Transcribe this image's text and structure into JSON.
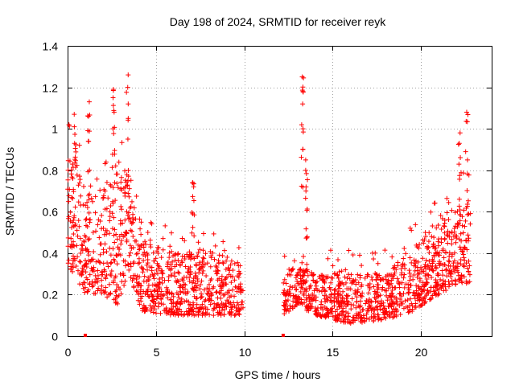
{
  "chart_data": {
    "type": "scatter",
    "title": "Day 198 of 2024, SRMTID for receiver reyk",
    "xlabel": "GPS time / hours",
    "ylabel": "SRMTID / TECUs",
    "xlim": [
      0,
      24
    ],
    "ylim": [
      0,
      1.4
    ],
    "xticks": [
      0,
      5,
      10,
      15,
      20
    ],
    "xtick_labels": [
      "0",
      "5",
      "10",
      "15",
      "20"
    ],
    "yticks": [
      0,
      0.2,
      0.4,
      0.6,
      0.8,
      1,
      1.2,
      1.4
    ],
    "ytick_labels": [
      "0",
      "0.2",
      "0.4",
      "0.6",
      "0.8",
      "1",
      "1.2",
      "1.4"
    ],
    "grid": true,
    "marker": "+",
    "series": [
      {
        "name": "SRMTID",
        "color": "#ff0000",
        "density_profile": [
          {
            "t": 0.0,
            "lo": 0.35,
            "hi": 0.92
          },
          {
            "t": 1.0,
            "lo": 0.2,
            "hi": 0.75
          },
          {
            "t": 2.0,
            "lo": 0.2,
            "hi": 0.7
          },
          {
            "t": 2.8,
            "lo": 0.15,
            "hi": 0.85
          },
          {
            "t": 3.5,
            "lo": 0.3,
            "hi": 0.8
          },
          {
            "t": 4.2,
            "lo": 0.12,
            "hi": 0.45
          },
          {
            "t": 6.0,
            "lo": 0.1,
            "hi": 0.4
          },
          {
            "t": 8.0,
            "lo": 0.1,
            "hi": 0.42
          },
          {
            "t": 9.9,
            "lo": 0.1,
            "hi": 0.35
          },
          {
            "t": 12.2,
            "lo": 0.1,
            "hi": 0.3
          },
          {
            "t": 13.0,
            "lo": 0.15,
            "hi": 0.35
          },
          {
            "t": 14.0,
            "lo": 0.1,
            "hi": 0.3
          },
          {
            "t": 16.0,
            "lo": 0.06,
            "hi": 0.3
          },
          {
            "t": 18.0,
            "lo": 0.08,
            "hi": 0.3
          },
          {
            "t": 19.5,
            "lo": 0.12,
            "hi": 0.42
          },
          {
            "t": 21.0,
            "lo": 0.2,
            "hi": 0.55
          },
          {
            "t": 22.0,
            "lo": 0.25,
            "hi": 0.65
          },
          {
            "t": 22.8,
            "lo": 0.25,
            "hi": 0.7
          }
        ],
        "gap": [
          9.95,
          12.2
        ],
        "spikes": [
          {
            "t": 0.4,
            "values": [
              0.93,
              1.01,
              1.07
            ]
          },
          {
            "t": 1.2,
            "values": [
              0.94,
              1.06,
              1.13
            ]
          },
          {
            "t": 2.6,
            "values": [
              1.0,
              1.08,
              1.15,
              1.19
            ]
          },
          {
            "t": 3.4,
            "values": [
              0.95,
              1.05,
              1.12,
              1.2,
              1.26
            ]
          },
          {
            "t": 7.1,
            "values": [
              0.72,
              0.74
            ]
          },
          {
            "t": 13.3,
            "values": [
              0.9,
              1.0,
              1.12,
              1.18,
              1.25
            ]
          },
          {
            "t": 13.5,
            "values": [
              0.72,
              0.8,
              0.85
            ]
          },
          {
            "t": 22.2,
            "values": [
              0.93,
              0.98
            ]
          },
          {
            "t": 22.6,
            "values": [
              0.85,
              1.08
            ]
          }
        ],
        "isolated_low": [
          {
            "t": 1.0,
            "value": 0.0
          },
          {
            "t": 12.2,
            "value": 0.0
          }
        ]
      }
    ]
  }
}
